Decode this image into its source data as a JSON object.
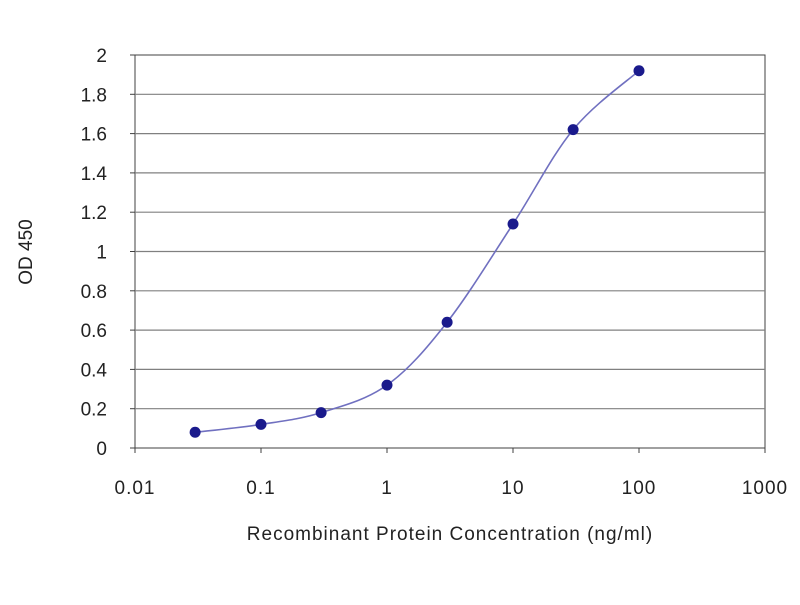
{
  "chart_data": {
    "type": "line",
    "title": "",
    "xlabel": "Recombinant Protein Concentration (ng/ml)",
    "ylabel": "OD 450",
    "x_scale": "log",
    "xlim": [
      0.01,
      1000
    ],
    "ylim": [
      0,
      2
    ],
    "x_ticks": [
      0.01,
      0.1,
      1,
      10,
      100,
      1000
    ],
    "x_tick_labels": [
      "0.01",
      "0.1",
      "1",
      "10",
      "100",
      "1000"
    ],
    "y_ticks": [
      0,
      0.2,
      0.4,
      0.6,
      0.8,
      1,
      1.2,
      1.4,
      1.6,
      1.8,
      2
    ],
    "y_tick_labels": [
      "0",
      "0.2",
      "0.4",
      "0.6",
      "0.8",
      "1",
      "1.2",
      "1.4",
      "1.6",
      "1.8",
      "2"
    ],
    "grid": "horizontal",
    "legend": "none",
    "colors": {
      "plot_background": "#ffffff",
      "gridline": "#808080",
      "series_line": "#7070c0",
      "marker": "#1a1a8c",
      "axis": "#404040"
    },
    "series": [
      {
        "x": [
          0.03,
          0.1,
          0.3,
          1,
          3,
          10,
          30,
          100
        ],
        "y": [
          0.08,
          0.12,
          0.18,
          0.32,
          0.64,
          1.14,
          1.62,
          1.92
        ]
      }
    ]
  }
}
